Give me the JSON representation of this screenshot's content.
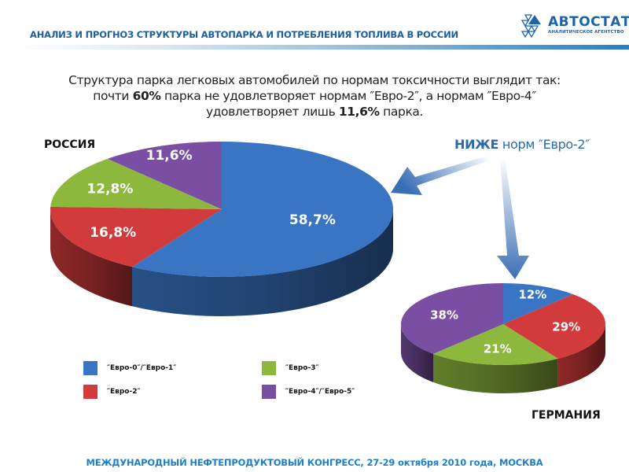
{
  "header": {
    "title": "АНАЛИЗ И ПРОГНОЗ СТРУКТУРЫ АВТОПАРКА И ПОТРЕБЛЕНИЯ ТОПЛИВА В РОССИИ",
    "logo_name": "АВТОСТАТ",
    "logo_tagline": "АНАЛИТИЧЕСКОЕ АГЕНТСТВО",
    "accent": "#1d5f9c"
  },
  "lead": {
    "line1": "Структура парка легковых автомобилей по нормам токсичности выглядит так:",
    "line2_pre": "почти ",
    "line2_bold": "60%",
    "line2_post": " парка не удовлетворяет нормам ″Евро-2″, а нормам ″Евро-4″",
    "line3_pre": "удовлетворяет лишь ",
    "line3_bold": "11,6%",
    "line3_post": " парка."
  },
  "callout": {
    "bold": "НИЖЕ",
    "rest": " норм ″Евро-2″"
  },
  "footer": {
    "text": "МЕЖДУНАРОДНЫЙ НЕФТЕПРОДУКТОВЫЙ КОНГРЕСС, 27-29 октября 2010 года, МОСКВА"
  },
  "legend": [
    {
      "label": "″Евро-0″/″Евро-1″",
      "color": "#3a75c4"
    },
    {
      "label": "″Евро-2″",
      "color": "#d13b3b"
    },
    {
      "label": "″Евро-3″",
      "color": "#8db83e"
    },
    {
      "label": "″Евро-4″/″Евро-5″",
      "color": "#7a4fa3"
    }
  ],
  "chart_data": [
    {
      "type": "pie",
      "title": "РОССИЯ",
      "categories": [
        "″Евро-0″/″Евро-1″",
        "″Евро-2″",
        "″Евро-3″",
        "″Евро-4″/″Евро-5″"
      ],
      "values": [
        58.7,
        16.8,
        12.8,
        11.6
      ],
      "labels": [
        "58,7%",
        "16,8%",
        "12,8%",
        "11,6%"
      ],
      "colors": [
        "#3a75c4",
        "#d13b3b",
        "#8db83e",
        "#7a4fa3"
      ],
      "style": "3d",
      "legend_position": "bottom"
    },
    {
      "type": "pie",
      "title": "ГЕРМАНИЯ",
      "categories": [
        "″Евро-0″/″Евро-1″",
        "″Евро-2″",
        "″Евро-3″",
        "″Евро-4″/″Евро-5″"
      ],
      "values": [
        12,
        29,
        21,
        38
      ],
      "labels": [
        "12%",
        "29%",
        "21%",
        "38%"
      ],
      "colors": [
        "#3a75c4",
        "#d13b3b",
        "#8db83e",
        "#7a4fa3"
      ],
      "style": "3d"
    }
  ]
}
